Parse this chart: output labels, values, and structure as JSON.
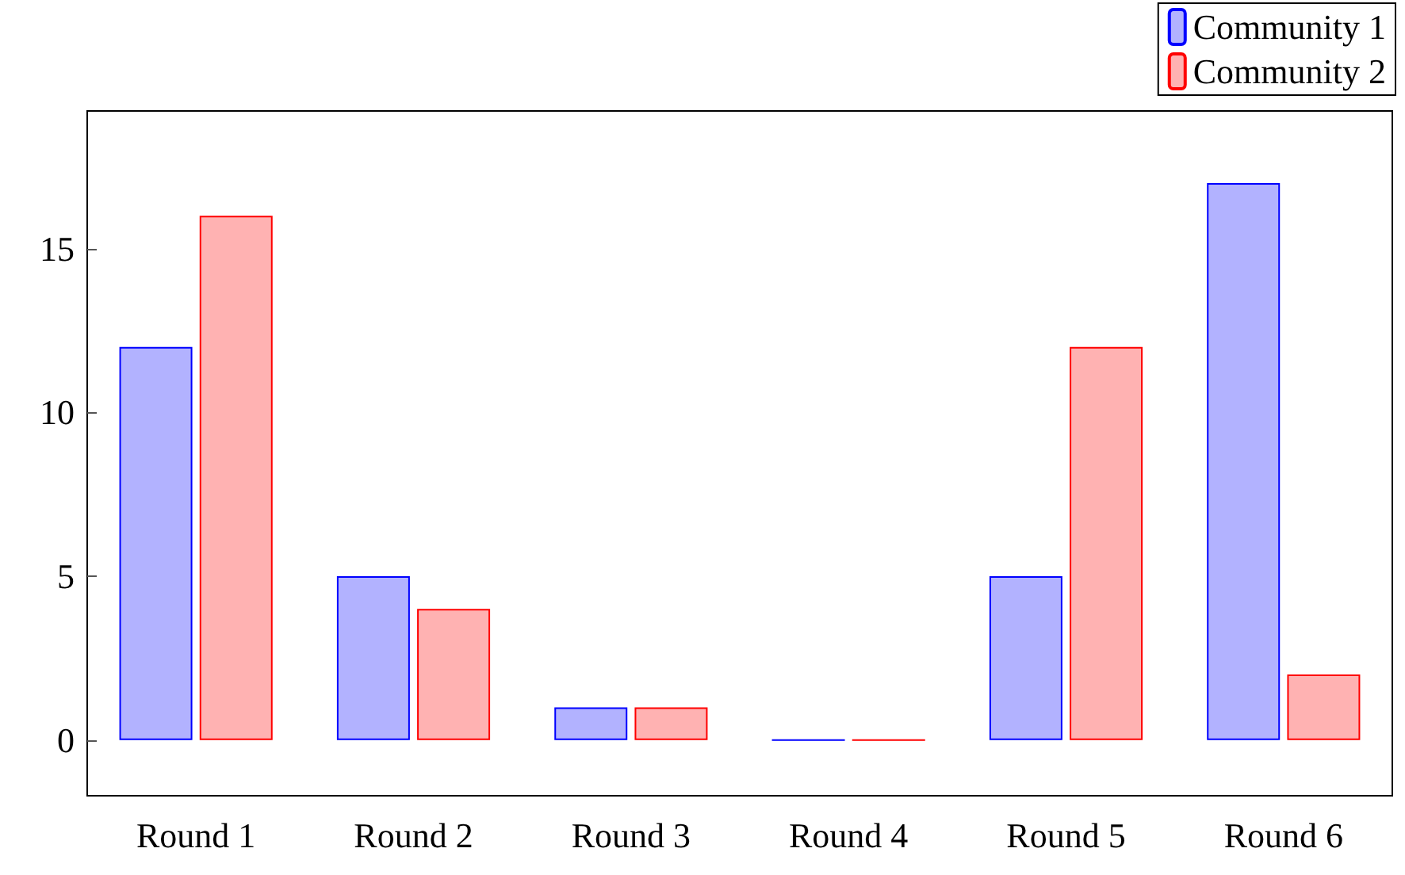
{
  "chart_data": {
    "type": "bar",
    "categories": [
      "Round 1",
      "Round 2",
      "Round 3",
      "Round 4",
      "Round 5",
      "Round 6"
    ],
    "series": [
      {
        "name": "Community 1",
        "color": "#0000ff",
        "values": [
          12,
          5,
          1,
          0,
          5,
          17
        ]
      },
      {
        "name": "Community 2",
        "color": "#ff0000",
        "values": [
          16,
          4,
          1,
          0,
          12,
          2
        ]
      }
    ],
    "ylim": [
      -1.7,
      19.2
    ],
    "yticks": [
      0,
      5,
      10,
      15
    ],
    "grid": false,
    "legend": "top right"
  }
}
